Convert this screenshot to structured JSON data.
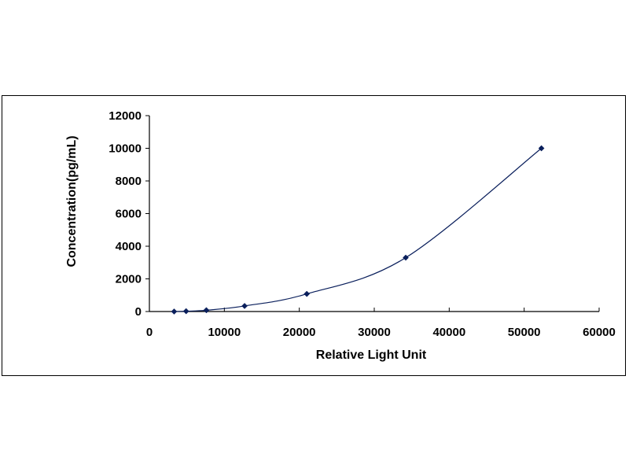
{
  "chart_data": {
    "type": "scatter",
    "title": "",
    "xlabel": "Relative Light Unit",
    "ylabel": "Concentration(pg/mL)",
    "xlim": [
      0,
      60000
    ],
    "ylim": [
      0,
      12000
    ],
    "xticks": [
      0,
      10000,
      20000,
      30000,
      40000,
      50000,
      60000
    ],
    "yticks": [
      0,
      2000,
      4000,
      6000,
      8000,
      10000,
      12000
    ],
    "xtick_labels": [
      "0",
      "10000",
      "20000",
      "30000",
      "40000",
      "50000",
      "60000"
    ],
    "ytick_labels": [
      "0",
      "2000",
      "4000",
      "6000",
      "8000",
      "10000",
      "12000"
    ],
    "grid": false,
    "legend": "none",
    "series": [
      {
        "x": [
          3300,
          4900,
          7600,
          12700,
          21000,
          34200,
          52300
        ],
        "y": [
          0,
          20,
          80,
          340,
          1080,
          3300,
          10000
        ],
        "marker": "diamond",
        "trendline": "smooth curve",
        "color": "#0a1f5c"
      }
    ]
  }
}
